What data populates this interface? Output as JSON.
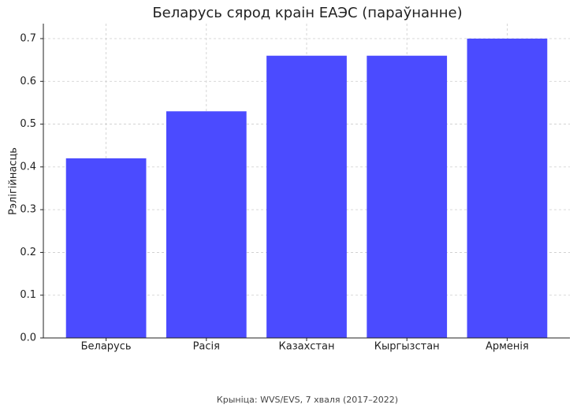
{
  "chart_data": {
    "type": "bar",
    "title": "Беларусь сярод краін ЕАЭС (параўнанне)",
    "y_label": "Рэлігійнасць",
    "caption": "Крыніца: WVS/EVS, 7 хваля (2017–2022)",
    "categories": [
      "Беларусь",
      "Расія",
      "Казахстан",
      "Кыргызстан",
      "Арменія"
    ],
    "values": [
      0.42,
      0.53,
      0.66,
      0.66,
      0.7
    ],
    "color": "#4b4bff",
    "ylim": [
      0,
      0.735
    ],
    "yticks": [
      {
        "value": 0,
        "label": "0.0"
      },
      0.1,
      0.2,
      0.3,
      0.4,
      0.5,
      0.6,
      0.7
    ],
    "grid": true
  }
}
